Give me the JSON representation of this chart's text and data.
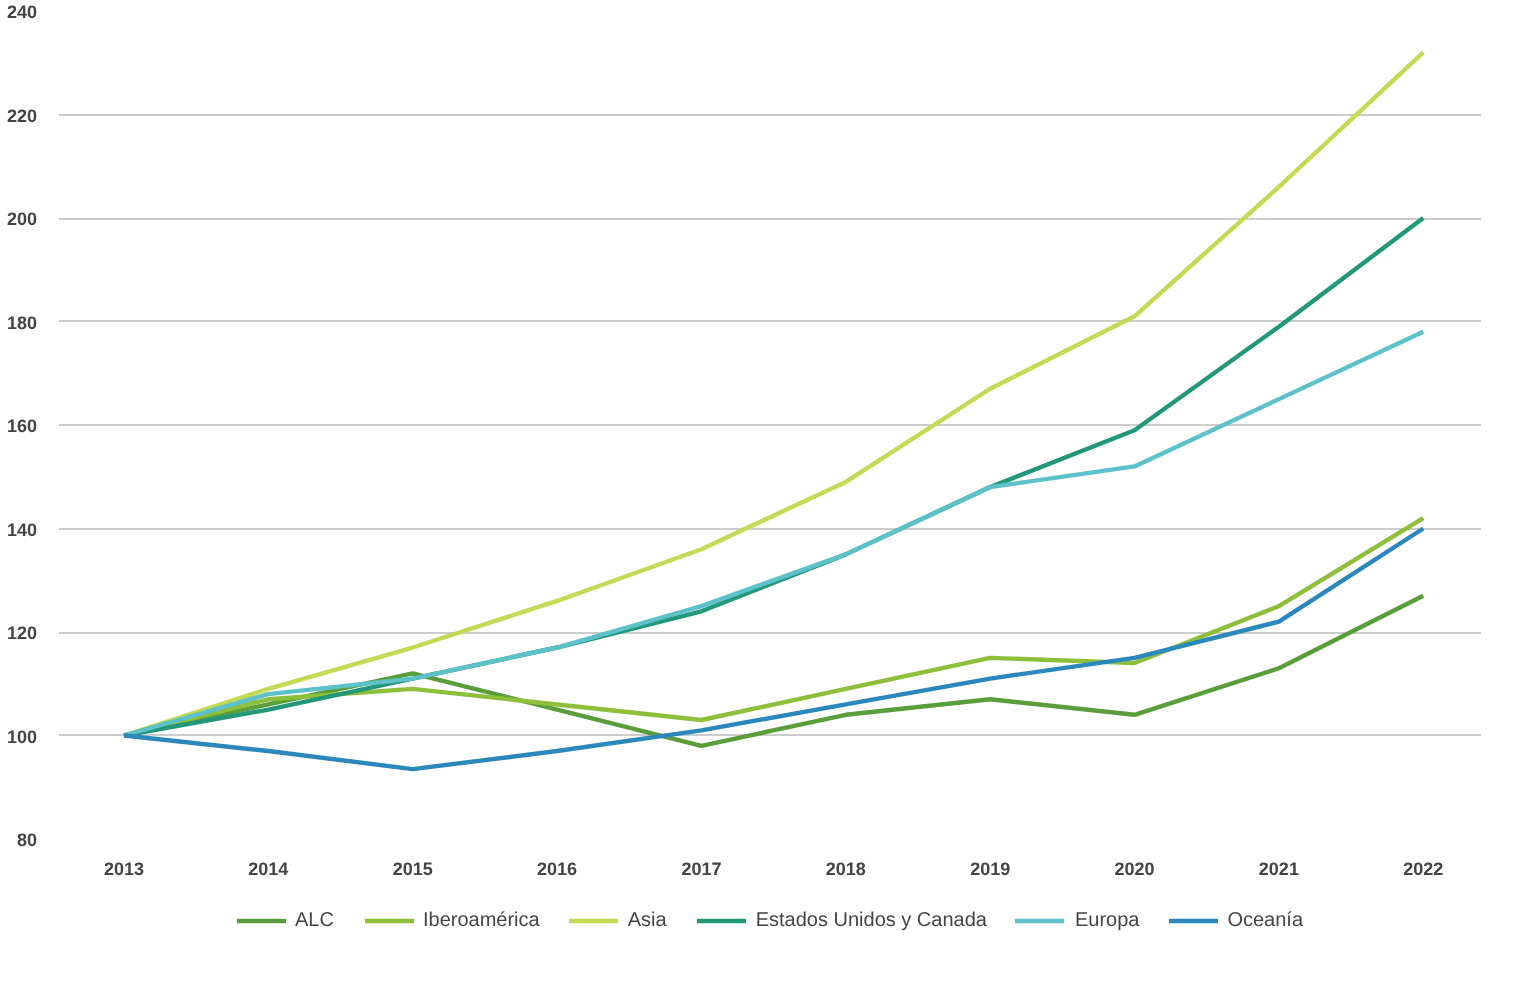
{
  "chart_data": {
    "type": "line",
    "categories": [
      "2013",
      "2014",
      "2015",
      "2016",
      "2017",
      "2018",
      "2019",
      "2020",
      "2021",
      "2022"
    ],
    "ylim": [
      80,
      240
    ],
    "yticks": [
      80,
      100,
      120,
      140,
      160,
      180,
      200,
      220,
      240
    ],
    "grid": "y",
    "legend": "bottom",
    "marker": "none",
    "line_style": "solid",
    "series": [
      {
        "name": "ALC",
        "color": "#5a9e3c",
        "values": [
          100,
          106,
          112,
          105,
          98,
          104,
          107,
          104,
          113,
          127
        ]
      },
      {
        "name": "Iberoamérica",
        "color": "#8dbf3a",
        "values": [
          100,
          107,
          109,
          106,
          103,
          109,
          115,
          114,
          125,
          142
        ]
      },
      {
        "name": "Asia",
        "color": "#c3da55",
        "values": [
          100,
          109,
          117,
          126,
          136,
          149,
          167,
          181,
          206,
          232
        ]
      },
      {
        "name": "Estados Unidos y Canada",
        "color": "#23977a",
        "values": [
          100,
          105,
          111,
          117,
          124,
          135,
          148,
          159,
          179,
          200
        ]
      },
      {
        "name": "Europa",
        "color": "#5cc1c9",
        "values": [
          100,
          108,
          111,
          117,
          125,
          135,
          148,
          152,
          165,
          178
        ]
      },
      {
        "name": "Oceanía",
        "color": "#2a88bd",
        "values": [
          100,
          97,
          93.5,
          97,
          101,
          106,
          111,
          115,
          122,
          140
        ]
      }
    ]
  }
}
